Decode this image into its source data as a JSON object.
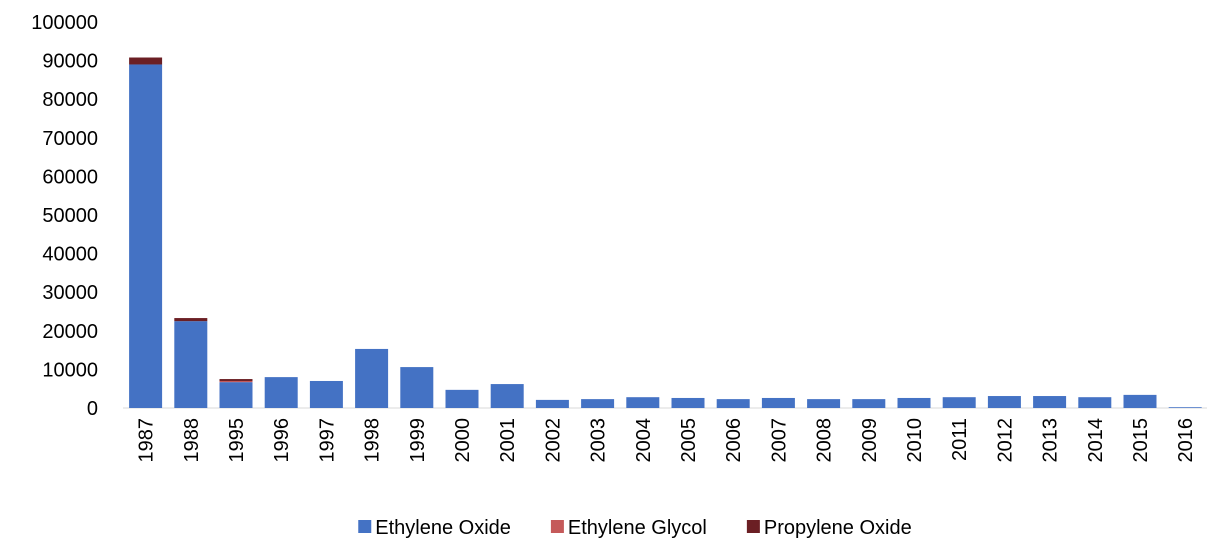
{
  "chart_data": {
    "type": "bar",
    "stacked": true,
    "categories": [
      "1987",
      "1988",
      "1995",
      "1996",
      "1997",
      "1998",
      "1999",
      "2000",
      "2001",
      "2002",
      "2003",
      "2004",
      "2005",
      "2006",
      "2007",
      "2008",
      "2009",
      "2010",
      "2011",
      "2012",
      "2013",
      "2014",
      "2015",
      "2016"
    ],
    "series": [
      {
        "name": "Ethylene Oxide",
        "color": "#4472c4",
        "values": [
          89000,
          22500,
          6700,
          8000,
          7000,
          15300,
          10600,
          4700,
          6200,
          2100,
          2300,
          2800,
          2600,
          2300,
          2600,
          2300,
          2300,
          2600,
          2800,
          3100,
          3100,
          2800,
          3400,
          200
        ]
      },
      {
        "name": "Ethylene Glycol",
        "color": "#c55a5a",
        "values": [
          0,
          0,
          300,
          0,
          0,
          0,
          0,
          0,
          0,
          0,
          0,
          0,
          0,
          0,
          0,
          0,
          0,
          0,
          0,
          0,
          0,
          0,
          0,
          0
        ]
      },
      {
        "name": "Propylene Oxide",
        "color": "#6b1f24",
        "values": [
          1800,
          800,
          500,
          0,
          0,
          0,
          0,
          0,
          0,
          0,
          0,
          0,
          0,
          0,
          0,
          0,
          0,
          0,
          0,
          0,
          0,
          0,
          0,
          0
        ]
      }
    ],
    "ylim": [
      0,
      100000
    ],
    "yticks": [
      0,
      10000,
      20000,
      30000,
      40000,
      50000,
      60000,
      70000,
      80000,
      90000,
      100000
    ],
    "grid": false,
    "legend": "bottom"
  }
}
